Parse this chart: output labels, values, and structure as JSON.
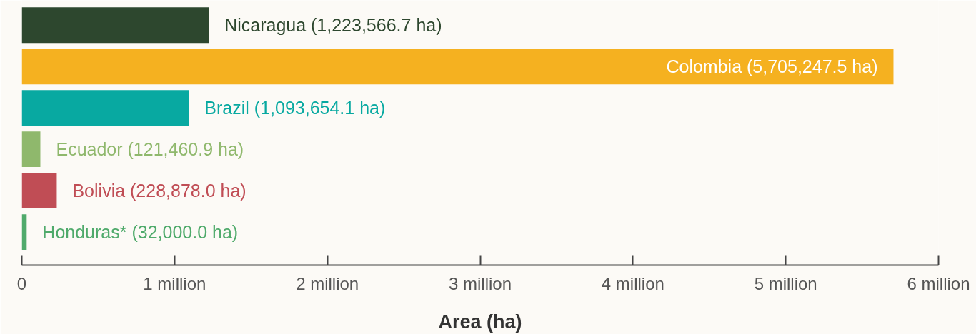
{
  "chart_data": {
    "type": "bar",
    "orientation": "horizontal",
    "xlabel": "Area (ha)",
    "categories": [
      "Nicaragua",
      "Colombia",
      "Brazil",
      "Ecuador",
      "Bolivia",
      "Honduras*"
    ],
    "values": [
      1223566.7,
      5705247.5,
      1093654.1,
      121460.9,
      228878.0,
      32000.0
    ],
    "value_labels": [
      "(1,223,566.7 ha)",
      "(5,705,247.5 ha)",
      "(1,093,654.1 ha)",
      "(121,460.9 ha)",
      "(228,878.0 ha)",
      "(32,000.0 ha)"
    ],
    "colors": [
      "#2d472e",
      "#f5b120",
      "#08a9a1",
      "#8fb86c",
      "#c04d55",
      "#4faa6b"
    ],
    "xlim": [
      0,
      6000000
    ],
    "xticks": [
      0,
      {
        "value": 1000000,
        "label": "1 million"
      },
      {
        "value": 2000000,
        "label": "2 million"
      },
      {
        "value": 3000000,
        "label": "3 million"
      },
      {
        "value": 4000000,
        "label": "4 million"
      },
      {
        "value": 5000000,
        "label": "5 million"
      },
      {
        "value": 6000000,
        "label": "6 million"
      }
    ],
    "grid": false
  }
}
